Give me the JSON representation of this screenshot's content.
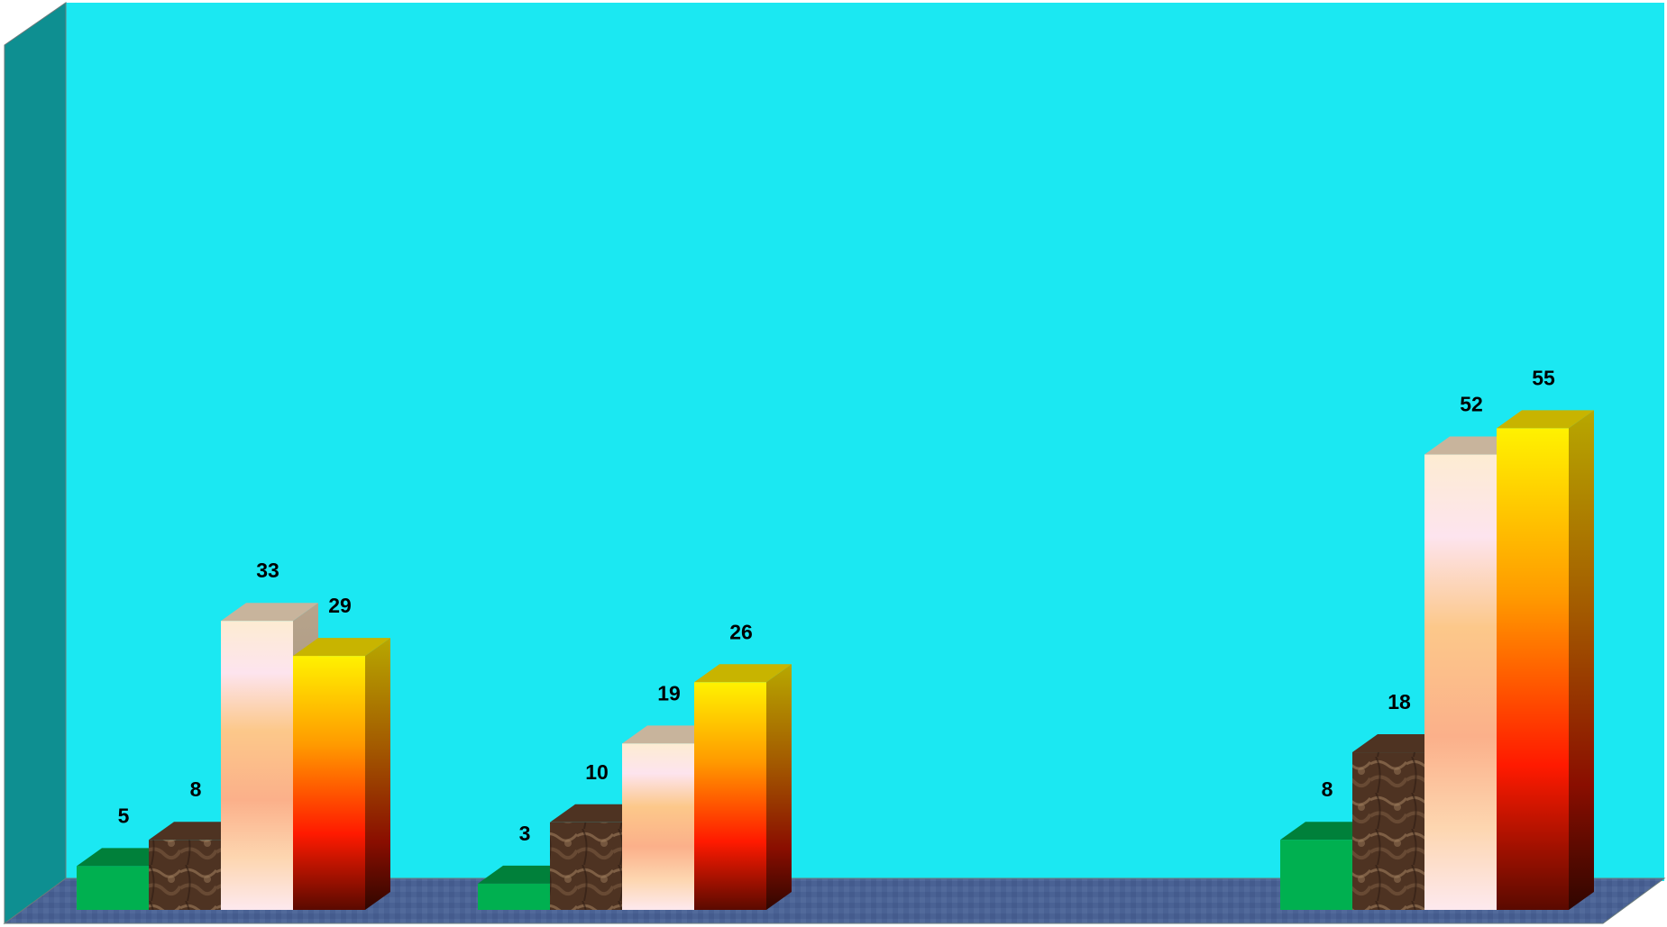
{
  "chart_data": {
    "type": "bar",
    "title": "",
    "xlabel": "",
    "ylabel": "",
    "categories": [
      "",
      "",
      "",
      ""
    ],
    "ylim": [
      0,
      60
    ],
    "grid": false,
    "legend": "none",
    "series": [
      {
        "values": [
          5,
          3,
          null,
          8
        ],
        "color": "#00b050"
      },
      {
        "values": [
          8,
          10,
          null,
          18
        ],
        "color": "#5a3a24"
      },
      {
        "values": [
          33,
          19,
          null,
          52
        ],
        "color": "#fbe3c8"
      },
      {
        "values": [
          29,
          26,
          null,
          55
        ],
        "color": "#ff8c00"
      }
    ],
    "style": {
      "back_wall_color": "#1be8f2",
      "side_wall_color": "#0e8f91",
      "floor_color": "#4a6294",
      "three_d": true
    }
  }
}
